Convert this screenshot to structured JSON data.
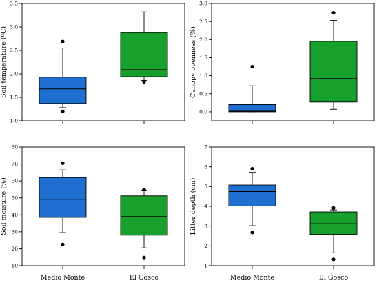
{
  "colors": {
    "medio_monte": "#1f6fd0",
    "el_gosco": "#17a02c"
  },
  "chart_data": [
    {
      "type": "box",
      "ylabel": "Soil temperature (ºC)",
      "ylim": [
        1.0,
        3.5
      ],
      "yticks": [
        "1.0",
        "1.5",
        "2.0",
        "2.5",
        "3.0",
        "3.5"
      ],
      "ytick_values": [
        1.0,
        1.5,
        2.0,
        2.5,
        3.0,
        3.5
      ],
      "categories": [
        "Medio Monte",
        "El Gosco"
      ],
      "show_categories": false,
      "boxes": [
        {
          "q1": 1.37,
          "median": 1.68,
          "q3": 1.93,
          "whisker_low": 1.28,
          "whisker_high": 2.55,
          "outliers": [
            1.2,
            2.69
          ]
        },
        {
          "q1": 1.94,
          "median": 2.09,
          "q3": 2.88,
          "whisker_low": 1.86,
          "whisker_high": 3.32,
          "outliers": [
            1.83
          ]
        }
      ]
    },
    {
      "type": "box",
      "ylabel": "Canopy openness (%)",
      "ylim": [
        -0.25,
        3.0
      ],
      "yticks": [
        "0.0",
        "0.5",
        "1.0",
        "1.5",
        "2.0",
        "2.5",
        "3.0"
      ],
      "ytick_values": [
        0.0,
        0.5,
        1.0,
        1.5,
        2.0,
        2.5,
        3.0
      ],
      "categories": [
        "Medio Monte",
        "El Gosco"
      ],
      "show_categories": false,
      "boxes": [
        {
          "q1": 0.0,
          "median": 0.02,
          "q3": 0.2,
          "whisker_low": 0.0,
          "whisker_high": 0.72,
          "outliers": [
            1.25
          ]
        },
        {
          "q1": 0.27,
          "median": 0.92,
          "q3": 1.95,
          "whisker_low": 0.07,
          "whisker_high": 2.53,
          "outliers": [
            2.74
          ]
        }
      ]
    },
    {
      "type": "box",
      "ylabel": "Soil moisture (%)",
      "ylim": [
        10,
        80
      ],
      "yticks": [
        "10",
        "20",
        "30",
        "40",
        "50",
        "60",
        "70",
        "80"
      ],
      "ytick_values": [
        10,
        20,
        30,
        40,
        50,
        60,
        70,
        80
      ],
      "categories": [
        "Medio Monte",
        "El Gosco"
      ],
      "show_categories": true,
      "boxes": [
        {
          "q1": 38.5,
          "median": 49.2,
          "q3": 62,
          "whisker_low": 29.5,
          "whisker_high": 66.5,
          "outliers": [
            22.5,
            70.5
          ]
        },
        {
          "q1": 28,
          "median": 39,
          "q3": 51.2,
          "whisker_low": 20.5,
          "whisker_high": 54.5,
          "outliers": [
            14.8,
            55
          ]
        }
      ]
    },
    {
      "type": "box",
      "ylabel": "Litter depth (cm)",
      "ylim": [
        1,
        7
      ],
      "yticks": [
        "1",
        "2",
        "3",
        "4",
        "5",
        "6",
        "7"
      ],
      "ytick_values": [
        1,
        2,
        3,
        4,
        5,
        6,
        7
      ],
      "categories": [
        "Medio Monte",
        "El Gosco"
      ],
      "show_categories": true,
      "boxes": [
        {
          "q1": 4.02,
          "median": 4.75,
          "q3": 5.08,
          "whisker_low": 3.02,
          "whisker_high": 5.72,
          "outliers": [
            2.68,
            5.9
          ]
        },
        {
          "q1": 2.58,
          "median": 3.12,
          "q3": 3.72,
          "whisker_low": 1.65,
          "whisker_high": 3.82,
          "outliers": [
            1.32,
            3.92
          ]
        }
      ]
    }
  ]
}
